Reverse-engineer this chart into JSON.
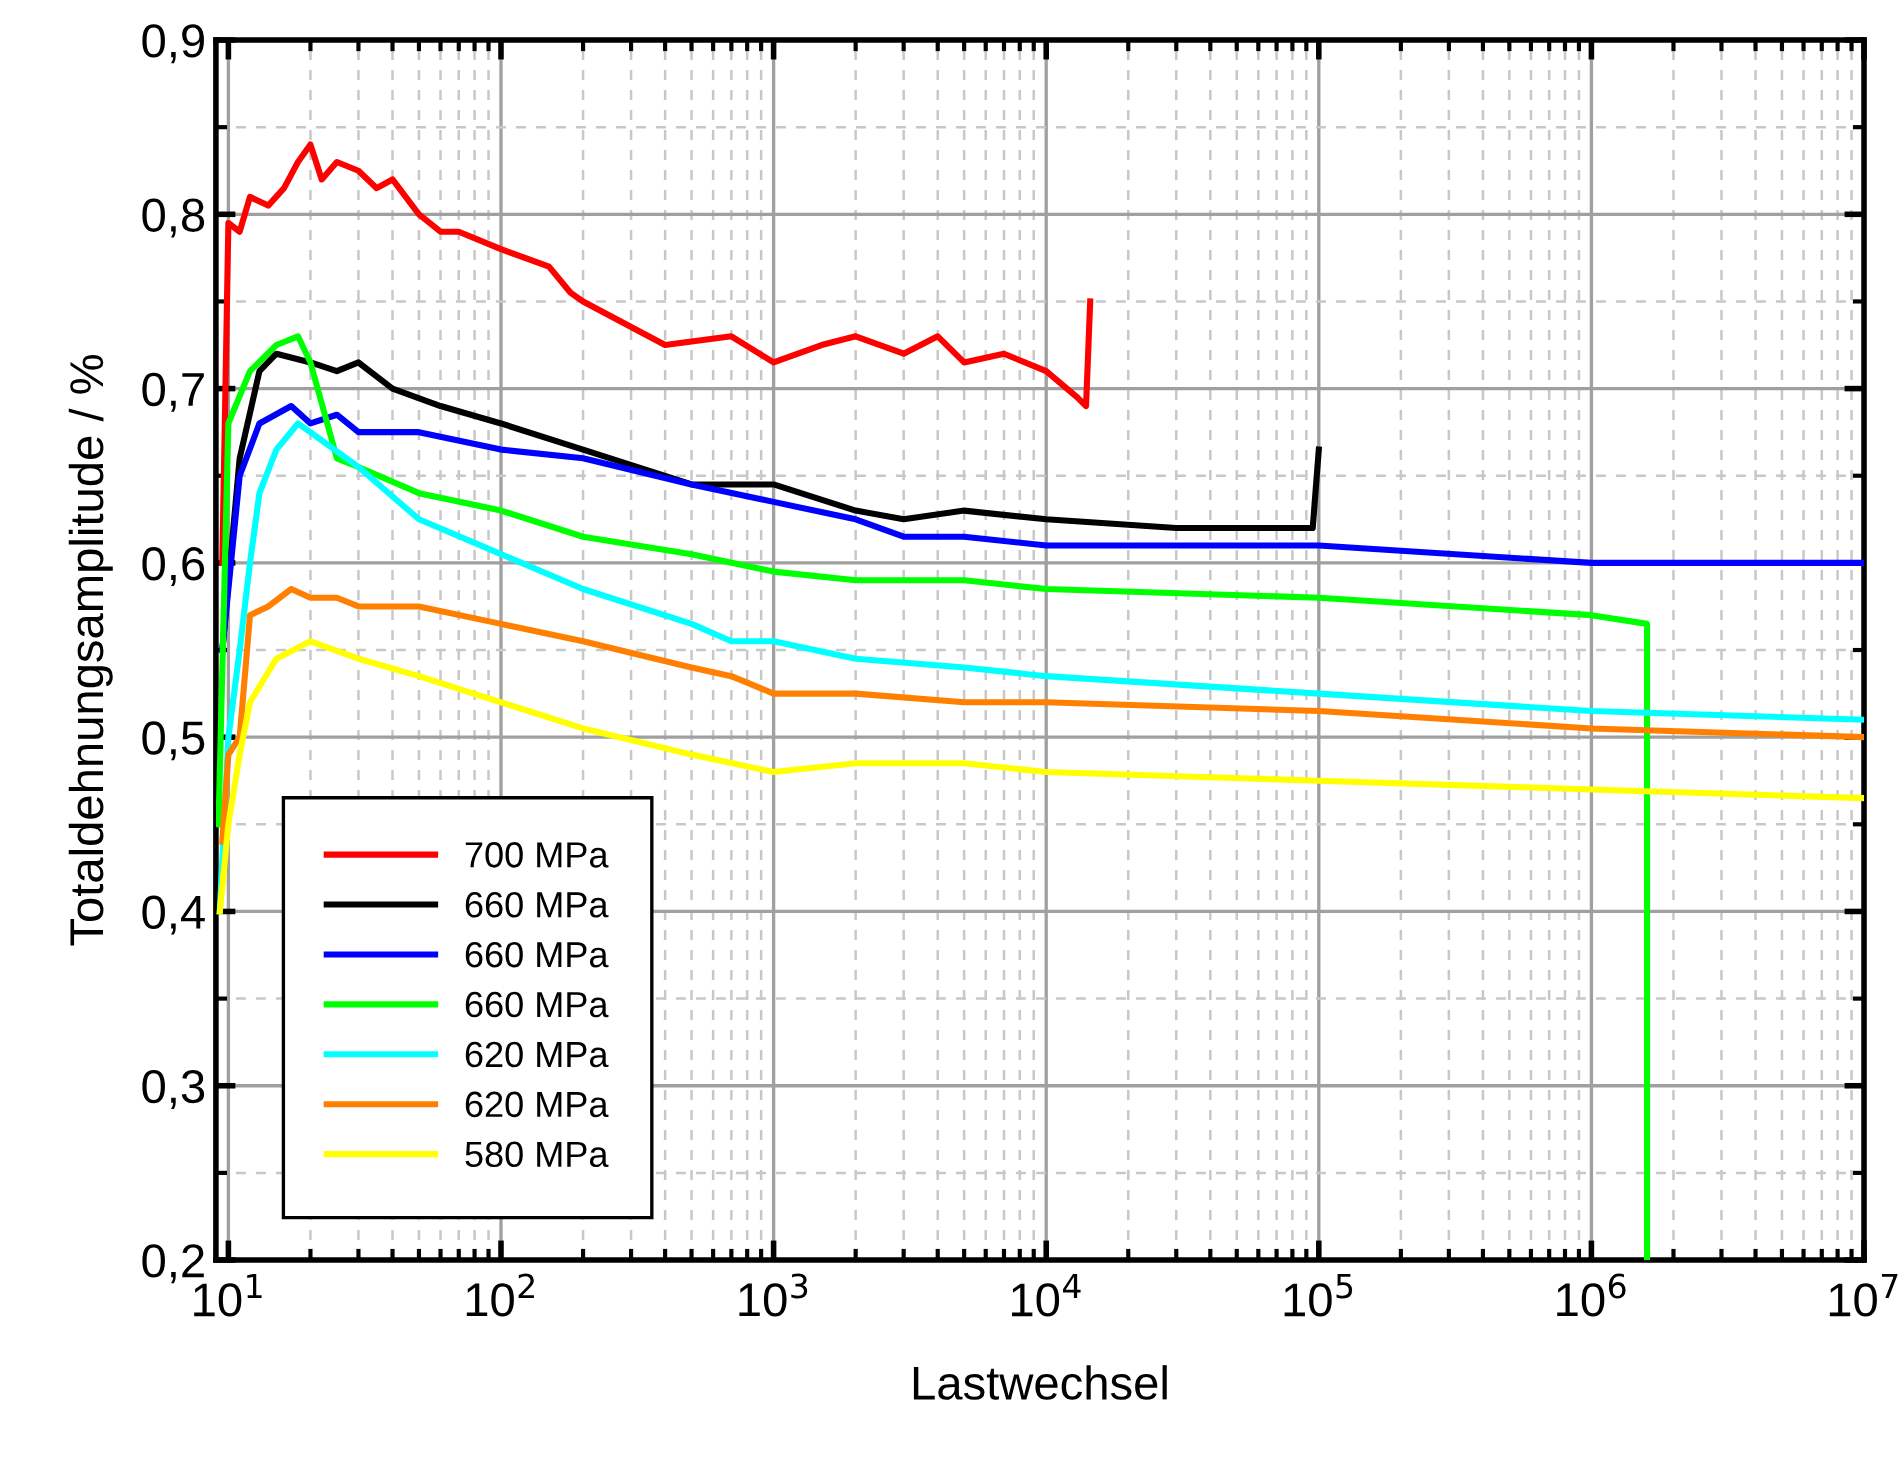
{
  "chart_data": {
    "type": "line",
    "xlabel": "Lastwechsel",
    "ylabel": "Totaldehnungsamplitude / %",
    "log": "x",
    "xlim": [
      9,
      10000000
    ],
    "xticks": [
      {
        "value": 10,
        "label": "10$^{1}$"
      },
      {
        "value": 100,
        "label": "10$^{2}$"
      },
      {
        "value": 1000,
        "label": "10$^{3}$"
      },
      {
        "value": 10000,
        "label": "10$^{4}$"
      },
      {
        "value": 100000,
        "label": "10$^{5}$"
      },
      {
        "value": 1000000,
        "label": "10$^{6}$"
      },
      {
        "value": 10000000,
        "label": "10$^{7}$"
      }
    ],
    "ylim": [
      0.2,
      0.9
    ],
    "yticks": [
      {
        "value": 0.2,
        "label": "0,2"
      },
      {
        "value": 0.3,
        "label": "0,3"
      },
      {
        "value": 0.4,
        "label": "0,4"
      },
      {
        "value": 0.5,
        "label": "0,5"
      },
      {
        "value": 0.6,
        "label": "0,6"
      },
      {
        "value": 0.7,
        "label": "0,7"
      },
      {
        "value": 0.8,
        "label": "0,8"
      },
      {
        "value": 0.9,
        "label": "0,9"
      }
    ],
    "grid": true,
    "legend": "bottom left",
    "marker": "none",
    "line_style": "solid",
    "series": [
      {
        "name": "700 MPa",
        "color": "#ff0000",
        "x": [
          9.5,
          10,
          11,
          12,
          14,
          16,
          18,
          20,
          22,
          25,
          30,
          35,
          40,
          50,
          60,
          70,
          100,
          150,
          180,
          200,
          400,
          700,
          1000,
          1500,
          2000,
          3000,
          4000,
          5000,
          7000,
          10000,
          13000,
          14000,
          14500
        ],
        "values": [
          0.6,
          0.795,
          0.79,
          0.81,
          0.805,
          0.815,
          0.83,
          0.84,
          0.82,
          0.83,
          0.825,
          0.815,
          0.82,
          0.8,
          0.79,
          0.79,
          0.78,
          0.77,
          0.755,
          0.75,
          0.725,
          0.73,
          0.715,
          0.725,
          0.73,
          0.72,
          0.73,
          0.715,
          0.72,
          0.71,
          0.695,
          0.69,
          0.75
        ]
      },
      {
        "name": "660 MPa",
        "color": "#000000",
        "x": [
          9.5,
          11,
          13,
          15,
          20,
          25,
          30,
          40,
          60,
          100,
          200,
          500,
          1000,
          2000,
          3000,
          5000,
          10000,
          30000,
          60000,
          95000,
          100000
        ],
        "values": [
          0.55,
          0.66,
          0.71,
          0.72,
          0.715,
          0.71,
          0.715,
          0.7,
          0.69,
          0.68,
          0.665,
          0.645,
          0.645,
          0.63,
          0.625,
          0.63,
          0.625,
          0.62,
          0.62,
          0.62,
          0.665
        ]
      },
      {
        "name": "660 MPa",
        "color": "#0000ff",
        "x": [
          9.5,
          11,
          13,
          17,
          20,
          25,
          30,
          50,
          100,
          200,
          500,
          1000,
          2000,
          3000,
          5000,
          10000,
          100000,
          1000000,
          10000000
        ],
        "values": [
          0.55,
          0.65,
          0.68,
          0.69,
          0.68,
          0.685,
          0.675,
          0.675,
          0.665,
          0.66,
          0.645,
          0.635,
          0.625,
          0.615,
          0.615,
          0.61,
          0.61,
          0.6,
          0.6
        ]
      },
      {
        "name": "660 MPa",
        "color": "#00ff00",
        "x": [
          9.2,
          10,
          12,
          15,
          18,
          20,
          25,
          30,
          50,
          100,
          200,
          500,
          1000,
          2000,
          5000,
          10000,
          100000,
          1000000,
          1600000,
          1600001
        ],
        "values": [
          0.45,
          0.68,
          0.71,
          0.725,
          0.73,
          0.715,
          0.66,
          0.655,
          0.64,
          0.63,
          0.615,
          0.605,
          0.595,
          0.59,
          0.59,
          0.585,
          0.58,
          0.57,
          0.565,
          0.2
        ]
      },
      {
        "name": "620 MPa",
        "color": "#00ffff",
        "x": [
          9.3,
          10,
          11,
          12,
          13,
          15,
          18,
          20,
          30,
          50,
          100,
          200,
          500,
          700,
          1000,
          2000,
          5000,
          10000,
          100000,
          1000000,
          10000000
        ],
        "values": [
          0.4,
          0.5,
          0.55,
          0.6,
          0.64,
          0.665,
          0.68,
          0.675,
          0.655,
          0.625,
          0.605,
          0.585,
          0.565,
          0.555,
          0.555,
          0.545,
          0.54,
          0.535,
          0.525,
          0.515,
          0.51
        ]
      },
      {
        "name": "620 MPa",
        "color": "#ff8000",
        "x": [
          9.5,
          10,
          11,
          12,
          14,
          17,
          20,
          25,
          30,
          50,
          100,
          200,
          500,
          700,
          1000,
          2000,
          5000,
          10000,
          100000,
          1000000,
          10000000
        ],
        "values": [
          0.44,
          0.49,
          0.5,
          0.57,
          0.575,
          0.585,
          0.58,
          0.58,
          0.575,
          0.575,
          0.565,
          0.555,
          0.54,
          0.535,
          0.525,
          0.525,
          0.52,
          0.52,
          0.515,
          0.505,
          0.5
        ]
      },
      {
        "name": "580 MPa",
        "color": "#ffff00",
        "x": [
          9.3,
          10,
          11,
          12,
          15,
          20,
          30,
          50,
          100,
          200,
          500,
          1000,
          2000,
          5000,
          10000,
          100000,
          1000000,
          10000000
        ],
        "values": [
          0.4,
          0.45,
          0.49,
          0.52,
          0.545,
          0.555,
          0.545,
          0.535,
          0.52,
          0.505,
          0.49,
          0.48,
          0.485,
          0.485,
          0.48,
          0.475,
          0.47,
          0.465
        ]
      }
    ]
  }
}
